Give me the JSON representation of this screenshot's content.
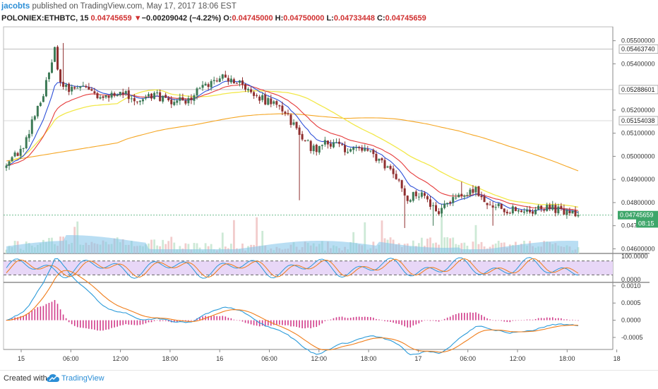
{
  "header": {
    "author": "jacobts",
    "published_text": " published on TradingView.com, May 17, 2017 18:06 EST",
    "symbol": "POLONIEX:ETHBTC, 15",
    "last": "0.04745659",
    "change_arrow": "▼",
    "change": "−0.00209042 (−4.22%)",
    "o_label": "O:",
    "o_value": "0.04745000",
    "h_label": "H:",
    "h_value": "0.04750000",
    "l_label": "L:",
    "l_value": "0.04733448",
    "c_label": "C:",
    "c_value": "0.04745659"
  },
  "footer": {
    "created_with": "Created with",
    "brand": "TradingView"
  },
  "colors": {
    "up": "#3d7a56",
    "down": "#8f2f2f",
    "ema_fast": "#2d4fd8",
    "ema_mid": "#e53b3b",
    "sma_yellow": "#f2e84a",
    "sma_orange": "#f5a623",
    "volume": "#80c3ea",
    "stoch_bg": "#e8d7f7",
    "macd_line": "#2a9ad9",
    "signal_line": "#f07d1a",
    "hist": "#d13c8a",
    "price_tag": "#3ea66a"
  },
  "chart_data": {
    "type": "candlestick",
    "title": "",
    "x_ticks": [
      "15",
      "06:00",
      "12:00",
      "18:00",
      "16",
      "06:00",
      "12:00",
      "18:00",
      "17",
      "06:00",
      "12:00",
      "18:00",
      "18"
    ],
    "price_axis": {
      "ticks": [
        "0.05500000",
        "0.05400000",
        "0.05200000",
        "0.05100000",
        "0.05000000",
        "0.04900000",
        "0.04800000",
        "0.047",
        "0.04600000"
      ],
      "tick_values": [
        0.055,
        0.054,
        0.052,
        0.051,
        0.05,
        0.049,
        0.048,
        0.047,
        0.046
      ],
      "ylim": [
        0.0458,
        0.0556
      ],
      "labels": [
        {
          "text": "0.05463740",
          "value": 0.0546374,
          "style": "box"
        },
        {
          "text": "0.05288601",
          "value": 0.05288601,
          "style": "box"
        },
        {
          "text": "0.05154038",
          "value": 0.05154038,
          "style": "box"
        },
        {
          "text": "0.04745659",
          "value": 0.04745659,
          "style": "last"
        },
        {
          "text": "08:15",
          "value": 0.0471,
          "style": "timer"
        }
      ]
    },
    "close_path": [
      [
        0,
        0.0498
      ],
      [
        5,
        0.0502
      ],
      [
        10,
        0.0518
      ],
      [
        14,
        0.0531
      ],
      [
        17,
        0.0546
      ],
      [
        19,
        0.0532
      ],
      [
        22,
        0.0528
      ],
      [
        27,
        0.0531
      ],
      [
        33,
        0.0526
      ],
      [
        40,
        0.0527
      ],
      [
        46,
        0.0525
      ],
      [
        52,
        0.0527
      ],
      [
        58,
        0.0523
      ],
      [
        64,
        0.0525
      ],
      [
        70,
        0.053
      ],
      [
        76,
        0.0535
      ],
      [
        82,
        0.0532
      ],
      [
        88,
        0.0525
      ],
      [
        93,
        0.0524
      ],
      [
        98,
        0.0519
      ],
      [
        104,
        0.0508
      ],
      [
        108,
        0.0503
      ],
      [
        113,
        0.0506
      ],
      [
        118,
        0.0503
      ],
      [
        123,
        0.0504
      ],
      [
        128,
        0.0501
      ],
      [
        133,
        0.0496
      ],
      [
        138,
        0.049
      ],
      [
        141,
        0.0482
      ],
      [
        145,
        0.0484
      ],
      [
        149,
        0.048
      ],
      [
        152,
        0.0476
      ],
      [
        156,
        0.048
      ],
      [
        160,
        0.0484
      ],
      [
        164,
        0.0486
      ],
      [
        168,
        0.0481
      ],
      [
        174,
        0.0478
      ],
      [
        180,
        0.0476
      ],
      [
        186,
        0.0477
      ],
      [
        190,
        0.0479
      ],
      [
        195,
        0.0476
      ],
      [
        201,
        0.04746
      ]
    ],
    "stochastic": {
      "ticks": [
        "100.0000",
        "0.0000"
      ],
      "upper_band": 80,
      "lower_band": 20
    },
    "macd": {
      "ticks": [
        "0.0010",
        "0.0005",
        "0.0000",
        "-0.0005"
      ],
      "ylim": [
        -0.00085,
        0.0011
      ]
    }
  }
}
